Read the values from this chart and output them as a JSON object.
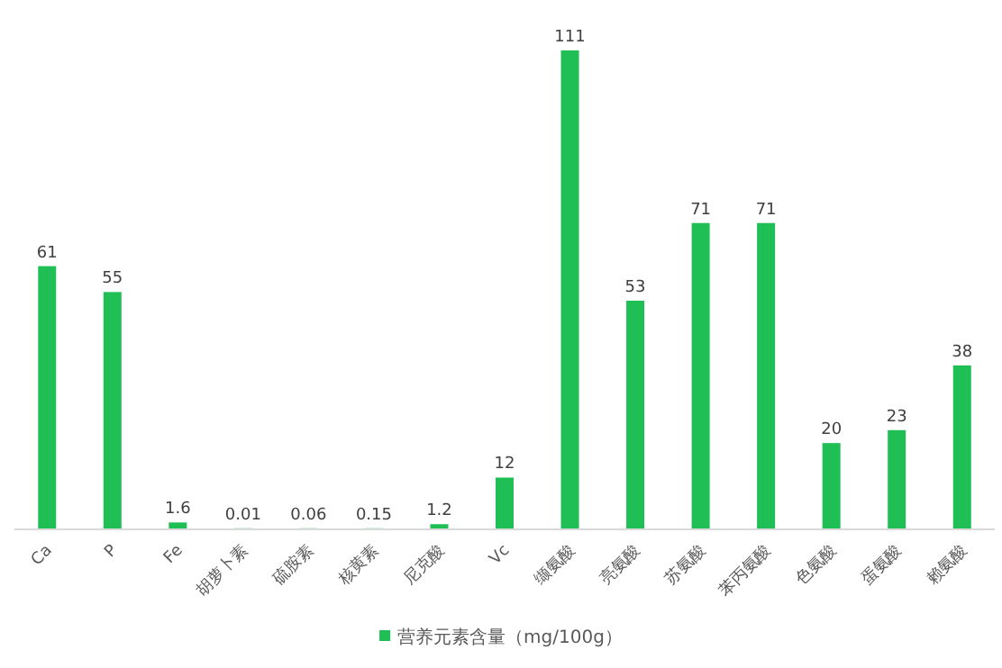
{
  "chart_data": {
    "type": "bar",
    "categories": [
      "Ca",
      "P",
      "Fe",
      "胡萝卜素",
      "硫胺素",
      "核黄素",
      "尼克酸",
      "Vc",
      "缬氨酸",
      "亮氨酸",
      "苏氨酸",
      "苯丙氨酸",
      "色氨酸",
      "蛋氨酸",
      "赖氨酸"
    ],
    "series": [
      {
        "name": "营养元素含量（mg/100g）",
        "color": "#1fbf55",
        "values": [
          61,
          55,
          1.6,
          0.01,
          0.06,
          0.15,
          1.2,
          12,
          111,
          53,
          71,
          71,
          20,
          23,
          38
        ]
      }
    ],
    "data_labels": true,
    "legend": "bottom"
  }
}
